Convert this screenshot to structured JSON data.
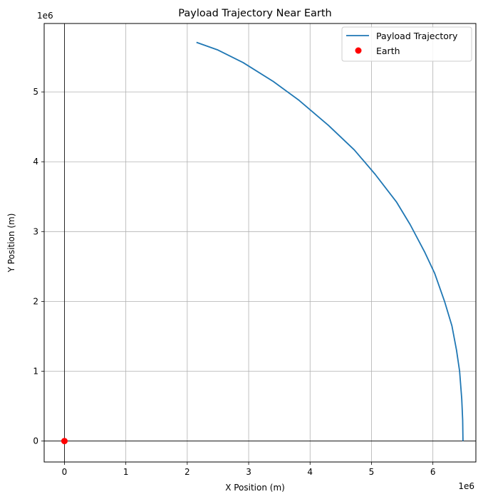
{
  "chart_data": {
    "type": "line",
    "title": "Payload Trajectory Near Earth",
    "xlabel": "X Position (m)",
    "ylabel": "Y Position (m)",
    "x_offset_label": "1e6",
    "y_offset_label": "1e6",
    "xlim": [
      -330000,
      6700000
    ],
    "ylim": [
      -300000,
      5980000
    ],
    "x_ticks": [
      0,
      1000000,
      2000000,
      3000000,
      4000000,
      5000000,
      6000000
    ],
    "x_tick_labels": [
      "0",
      "1",
      "2",
      "3",
      "4",
      "5",
      "6"
    ],
    "y_ticks": [
      0,
      1000000,
      2000000,
      3000000,
      4000000,
      5000000
    ],
    "y_tick_labels": [
      "0",
      "1",
      "2",
      "3",
      "4",
      "5"
    ],
    "grid": true,
    "legend_position": "top-right",
    "series": [
      {
        "name": "Payload Trajectory",
        "color": "#1f77b4",
        "points": [
          [
            6490000,
            0
          ],
          [
            6485000,
            300000
          ],
          [
            6470000,
            600000
          ],
          [
            6435000,
            1000000
          ],
          [
            6385000,
            1300000
          ],
          [
            6310000,
            1650000
          ],
          [
            6190000,
            2000000
          ],
          [
            6030000,
            2400000
          ],
          [
            5870000,
            2700000
          ],
          [
            5630000,
            3100000
          ],
          [
            5410000,
            3420000
          ],
          [
            5060000,
            3820000
          ],
          [
            4720000,
            4170000
          ],
          [
            4300000,
            4520000
          ],
          [
            3820000,
            4880000
          ],
          [
            3400000,
            5150000
          ],
          [
            2910000,
            5420000
          ],
          [
            2500000,
            5600000
          ],
          [
            2150000,
            5710000
          ]
        ]
      },
      {
        "name": "Earth",
        "color": "#ff0000",
        "marker": "circle",
        "points": [
          [
            0,
            0
          ]
        ]
      }
    ],
    "reference_lines": {
      "x": 0,
      "y": 0,
      "color": "#000000"
    }
  }
}
